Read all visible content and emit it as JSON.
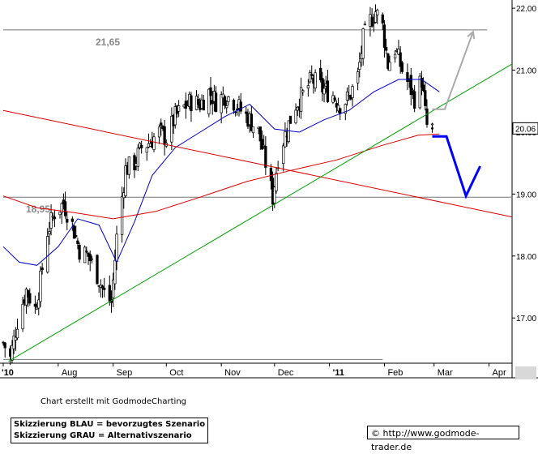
{
  "chart_data": {
    "type": "candlestick",
    "title": "",
    "xlabel": "",
    "ylabel": "",
    "ylim": [
      16.27,
      22.08
    ],
    "y_ticks": [
      "22.00",
      "21.00",
      "20.00",
      "19.00",
      "18.00",
      "17.00"
    ],
    "x_ticks": [
      "'10",
      "Aug",
      "Sep",
      "Oct",
      "Nov",
      "Dec",
      "'11",
      "Feb",
      "Mar",
      "Apr"
    ],
    "x_tick_dates": [
      "2010-07-01",
      "2010-08-01",
      "2010-09-01",
      "2010-10-01",
      "2010-11-01",
      "2010-12-01",
      "2011-01-01",
      "2011-02-01",
      "2011-03-01",
      "2011-04-01"
    ],
    "x_range": [
      "2010-07-01",
      "2011-04-14"
    ],
    "last_price": "20.06",
    "horizontal_levels": [
      {
        "label": "21,65",
        "value": 21.65
      },
      {
        "label": "18,95",
        "value": 18.95
      },
      {
        "label": "",
        "value": 16.33
      }
    ],
    "close_series": [
      {
        "date": "2010-07-01",
        "value": 16.6
      },
      {
        "date": "2010-07-05",
        "value": 16.35
      },
      {
        "date": "2010-07-09",
        "value": 16.95
      },
      {
        "date": "2010-07-14",
        "value": 17.45
      },
      {
        "date": "2010-07-19",
        "value": 17.15
      },
      {
        "date": "2010-07-22",
        "value": 17.6
      },
      {
        "date": "2010-07-26",
        "value": 18.4
      },
      {
        "date": "2010-07-30",
        "value": 18.7
      },
      {
        "date": "2010-08-04",
        "value": 18.85
      },
      {
        "date": "2010-08-09",
        "value": 18.5
      },
      {
        "date": "2010-08-13",
        "value": 18.1
      },
      {
        "date": "2010-08-18",
        "value": 18.0
      },
      {
        "date": "2010-08-23",
        "value": 17.7
      },
      {
        "date": "2010-08-27",
        "value": 17.4
      },
      {
        "date": "2010-08-31",
        "value": 17.25
      },
      {
        "date": "2010-09-03",
        "value": 18.3
      },
      {
        "date": "2010-09-08",
        "value": 19.4
      },
      {
        "date": "2010-09-13",
        "value": 19.5
      },
      {
        "date": "2010-09-17",
        "value": 19.75
      },
      {
        "date": "2010-09-22",
        "value": 19.85
      },
      {
        "date": "2010-09-27",
        "value": 20.0
      },
      {
        "date": "2010-10-01",
        "value": 19.9
      },
      {
        "date": "2010-10-06",
        "value": 20.25
      },
      {
        "date": "2010-10-11",
        "value": 20.4
      },
      {
        "date": "2010-10-15",
        "value": 20.5
      },
      {
        "date": "2010-10-20",
        "value": 20.45
      },
      {
        "date": "2010-10-25",
        "value": 20.65
      },
      {
        "date": "2010-10-29",
        "value": 20.5
      },
      {
        "date": "2010-11-03",
        "value": 20.6
      },
      {
        "date": "2010-11-08",
        "value": 20.5
      },
      {
        "date": "2010-11-12",
        "value": 20.35
      },
      {
        "date": "2010-11-17",
        "value": 20.2
      },
      {
        "date": "2010-11-22",
        "value": 20.0
      },
      {
        "date": "2010-11-26",
        "value": 19.5
      },
      {
        "date": "2010-11-30",
        "value": 18.95
      },
      {
        "date": "2010-12-03",
        "value": 19.6
      },
      {
        "date": "2010-12-08",
        "value": 20.05
      },
      {
        "date": "2010-12-13",
        "value": 20.45
      },
      {
        "date": "2010-12-17",
        "value": 20.6
      },
      {
        "date": "2010-12-22",
        "value": 20.85
      },
      {
        "date": "2010-12-28",
        "value": 20.7
      },
      {
        "date": "2011-01-03",
        "value": 20.6
      },
      {
        "date": "2011-01-07",
        "value": 20.45
      },
      {
        "date": "2011-01-12",
        "value": 20.55
      },
      {
        "date": "2011-01-17",
        "value": 20.9
      },
      {
        "date": "2011-01-20",
        "value": 21.5
      },
      {
        "date": "2011-01-24",
        "value": 21.8
      },
      {
        "date": "2011-01-27",
        "value": 21.95
      },
      {
        "date": "2011-01-31",
        "value": 21.7
      },
      {
        "date": "2011-02-03",
        "value": 21.1
      },
      {
        "date": "2011-02-07",
        "value": 21.35
      },
      {
        "date": "2011-02-11",
        "value": 21.0
      },
      {
        "date": "2011-02-15",
        "value": 20.75
      },
      {
        "date": "2011-02-18",
        "value": 20.55
      },
      {
        "date": "2011-02-22",
        "value": 20.85
      },
      {
        "date": "2011-02-24",
        "value": 20.3
      },
      {
        "date": "2011-02-25",
        "value": 20.1
      },
      {
        "date": "2011-02-28",
        "value": 20.06
      }
    ],
    "series": [
      {
        "name": "",
        "color": "#0000cc",
        "values": [
          {
            "date": "2010-07-01",
            "value": 18.15
          },
          {
            "date": "2010-07-10",
            "value": 17.9
          },
          {
            "date": "2010-07-20",
            "value": 17.85
          },
          {
            "date": "2010-08-01",
            "value": 18.15
          },
          {
            "date": "2010-08-12",
            "value": 18.6
          },
          {
            "date": "2010-08-24",
            "value": 18.5
          },
          {
            "date": "2010-09-03",
            "value": 17.9
          },
          {
            "date": "2010-09-13",
            "value": 18.55
          },
          {
            "date": "2010-09-23",
            "value": 19.3
          },
          {
            "date": "2010-10-06",
            "value": 19.75
          },
          {
            "date": "2010-10-20",
            "value": 20.0
          },
          {
            "date": "2010-11-03",
            "value": 20.25
          },
          {
            "date": "2010-11-17",
            "value": 20.45
          },
          {
            "date": "2010-12-01",
            "value": 20.05
          },
          {
            "date": "2010-12-15",
            "value": 20.0
          },
          {
            "date": "2010-12-29",
            "value": 20.2
          },
          {
            "date": "2011-01-12",
            "value": 20.35
          },
          {
            "date": "2011-01-26",
            "value": 20.65
          },
          {
            "date": "2011-02-09",
            "value": 20.85
          },
          {
            "date": "2011-02-22",
            "value": 20.85
          },
          {
            "date": "2011-03-04",
            "value": 20.65
          }
        ]
      },
      {
        "name": "",
        "color": "#dd0000",
        "values": [
          {
            "date": "2010-07-01",
            "value": 18.97
          },
          {
            "date": "2010-07-20",
            "value": 18.78
          },
          {
            "date": "2010-08-10",
            "value": 18.7
          },
          {
            "date": "2010-09-01",
            "value": 18.6
          },
          {
            "date": "2010-09-25",
            "value": 18.72
          },
          {
            "date": "2010-10-20",
            "value": 18.95
          },
          {
            "date": "2010-11-15",
            "value": 19.2
          },
          {
            "date": "2010-12-10",
            "value": 19.38
          },
          {
            "date": "2011-01-05",
            "value": 19.55
          },
          {
            "date": "2011-01-30",
            "value": 19.78
          },
          {
            "date": "2011-02-20",
            "value": 19.95
          },
          {
            "date": "2011-03-04",
            "value": 19.97
          }
        ]
      }
    ],
    "trendlines": [
      {
        "color": "#dd0000",
        "start": {
          "date": "2010-07-01",
          "value": 20.35
        },
        "end": {
          "date": "2011-04-14",
          "value": 18.63
        }
      },
      {
        "color": "#00a000",
        "start": {
          "date": "2010-07-04",
          "value": 16.3
        },
        "end": {
          "date": "2011-04-14",
          "value": 21.1
        }
      }
    ],
    "scenarios": [
      {
        "label": "Skizzierung BLAU = bevorzugtes Szenario",
        "color": "#0000ff",
        "points": [
          {
            "date": "2011-02-28",
            "value": 19.93
          },
          {
            "date": "2011-03-08",
            "value": 19.93
          },
          {
            "date": "2011-03-19",
            "value": 18.97
          },
          {
            "date": "2011-03-27",
            "value": 19.45
          }
        ]
      },
      {
        "label": "Skizzierung GRAU = Alternativszenario",
        "color": "#aaaaaa",
        "points": [
          {
            "date": "2011-02-28",
            "value": 20.37
          },
          {
            "date": "2011-03-07",
            "value": 20.37
          },
          {
            "date": "2011-03-23",
            "value": 21.62
          }
        ]
      }
    ]
  },
  "footer": {
    "credit": "Chart erstellt mit GodmodeCharting",
    "url": "© http://www.godmode-trader.de"
  }
}
